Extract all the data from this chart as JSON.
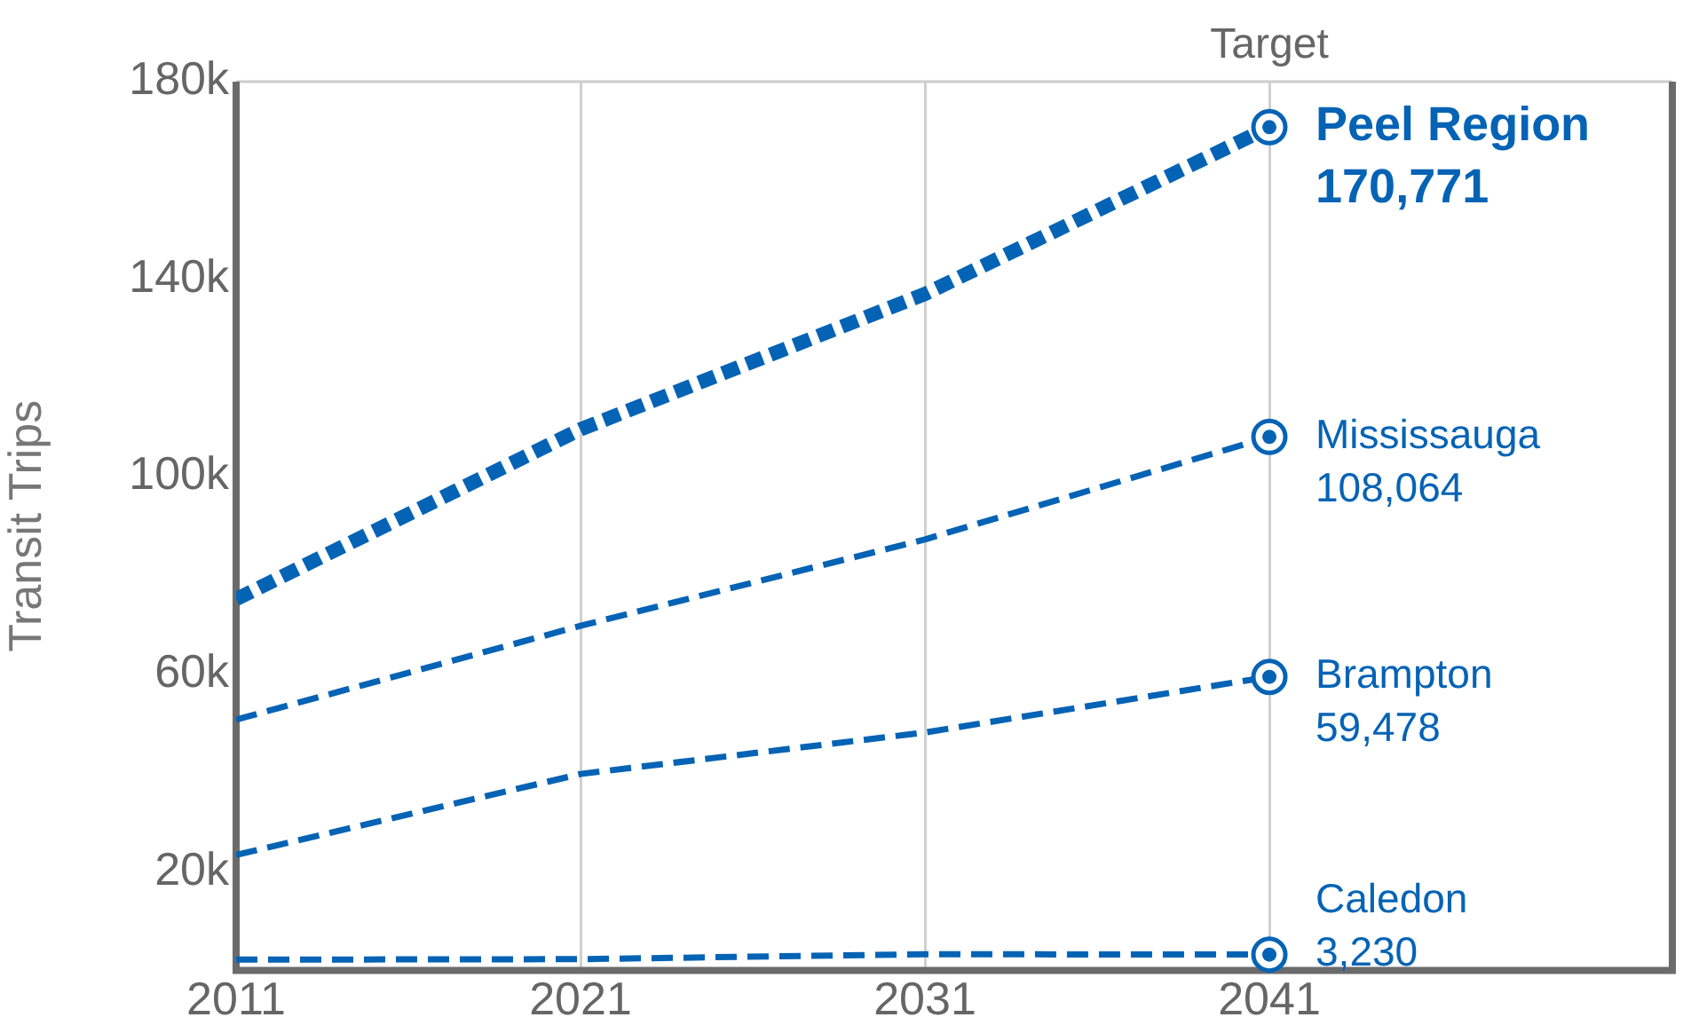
{
  "chart_data": {
    "type": "line",
    "ylabel": "Transit Trips",
    "x": [
      2011,
      2021,
      2031,
      2041
    ],
    "xlim": [
      2011,
      2052.7
    ],
    "xticks": [
      2011,
      2021,
      2031,
      2041
    ],
    "ylim": [
      0,
      180000
    ],
    "yticks": [
      {
        "value": 0,
        "label": null
      },
      {
        "value": 20000,
        "label": "20k"
      },
      {
        "value": 60000,
        "label": "60k"
      },
      {
        "value": 100000,
        "label": "100k"
      },
      {
        "value": 140000,
        "label": "140k"
      },
      {
        "value": 180000,
        "label": "180k"
      }
    ],
    "grid": "x",
    "legend": false,
    "line_style": "dashed",
    "annotations": [
      "Target"
    ],
    "series": [
      {
        "name": "Peel Region",
        "color": "#0563b5",
        "values": [
          75200,
          109600,
          137000,
          170771
        ],
        "value_labels": [
          null,
          null,
          null,
          "170,771"
        ]
      },
      {
        "name": "Mississauga",
        "color": "#0563b5",
        "values": [
          50800,
          69800,
          87300,
          108064
        ],
        "value_labels": [
          null,
          null,
          null,
          "108,064"
        ]
      },
      {
        "name": "Brampton",
        "color": "#0563b5",
        "values": [
          23400,
          39800,
          48200,
          59478
        ],
        "value_labels": [
          null,
          null,
          null,
          "59,478"
        ]
      },
      {
        "name": "Caledon",
        "color": "#0563b5",
        "values": [
          2200,
          2300,
          3300,
          3230
        ],
        "value_labels": [
          null,
          null,
          null,
          "3,230"
        ]
      }
    ]
  }
}
